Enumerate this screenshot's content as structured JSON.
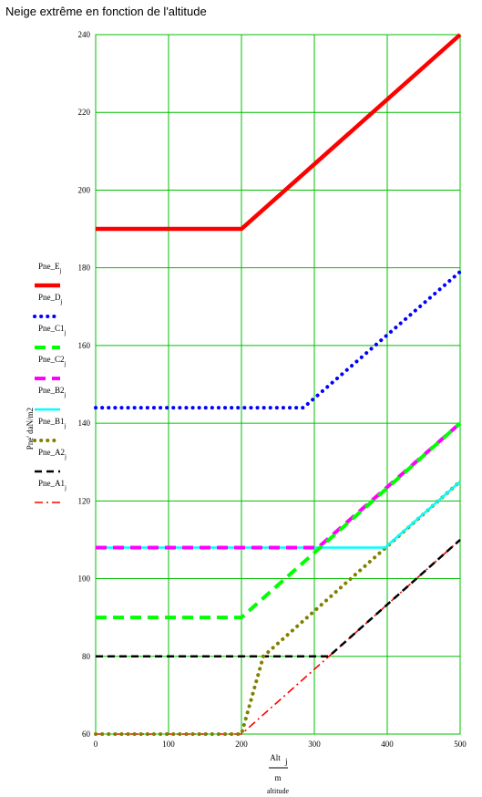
{
  "title": "Neige extrême en fonction de l'altitude",
  "chart_data": {
    "type": "line",
    "title": "Neige extrême en fonction de l'altitude",
    "ylabel": "Pne' daN/m2",
    "xlabel": {
      "numerator": "Alt",
      "numerator_sub": "j",
      "denominator": "m",
      "under": "altitude"
    },
    "xlim": [
      0,
      500
    ],
    "ylim": [
      60,
      240
    ],
    "x_ticks": [
      "0",
      "100",
      "200",
      "300",
      "400",
      "500"
    ],
    "y_ticks": [
      "60",
      "80",
      "100",
      "120",
      "140",
      "160",
      "180",
      "200",
      "220",
      "240"
    ],
    "grid": true,
    "legend_position": "left",
    "series": [
      {
        "name": "Pne_E",
        "sub": "j",
        "color": "#ff0000",
        "style": "solid-thick",
        "x": [
          0,
          200,
          500
        ],
        "y": [
          190,
          190,
          240
        ]
      },
      {
        "name": "Pne_D",
        "sub": "j",
        "color": "#0000ff",
        "style": "dotted",
        "x": [
          0,
          285,
          500
        ],
        "y": [
          144,
          144,
          179
        ]
      },
      {
        "name": "Pne_C1",
        "sub": "j",
        "color": "#00ff00",
        "style": "dashed",
        "x": [
          0,
          200,
          500
        ],
        "y": [
          90,
          90,
          140
        ]
      },
      {
        "name": "Pne_C2",
        "sub": "j",
        "color": "#ff00ff",
        "style": "dashed",
        "x": [
          0,
          305,
          500
        ],
        "y": [
          108,
          108,
          140
        ]
      },
      {
        "name": "Pne_B2",
        "sub": "j",
        "color": "#00ffff",
        "style": "solid",
        "x": [
          0,
          397,
          500
        ],
        "y": [
          108,
          108,
          125
        ]
      },
      {
        "name": "Pne_B1",
        "sub": "j",
        "color": "#808000",
        "style": "dotted",
        "x": [
          0,
          200,
          230,
          500
        ],
        "y": [
          60,
          60,
          80,
          125
        ]
      },
      {
        "name": "Pne_A2",
        "sub": "j",
        "color": "#000000",
        "style": "dashed",
        "x": [
          0,
          320,
          500
        ],
        "y": [
          80,
          80,
          110
        ]
      },
      {
        "name": "Pne_A1",
        "sub": "j",
        "color": "#ff0000",
        "style": "dashdot",
        "x": [
          0,
          200,
          500
        ],
        "y": [
          60,
          60,
          110
        ]
      }
    ]
  }
}
